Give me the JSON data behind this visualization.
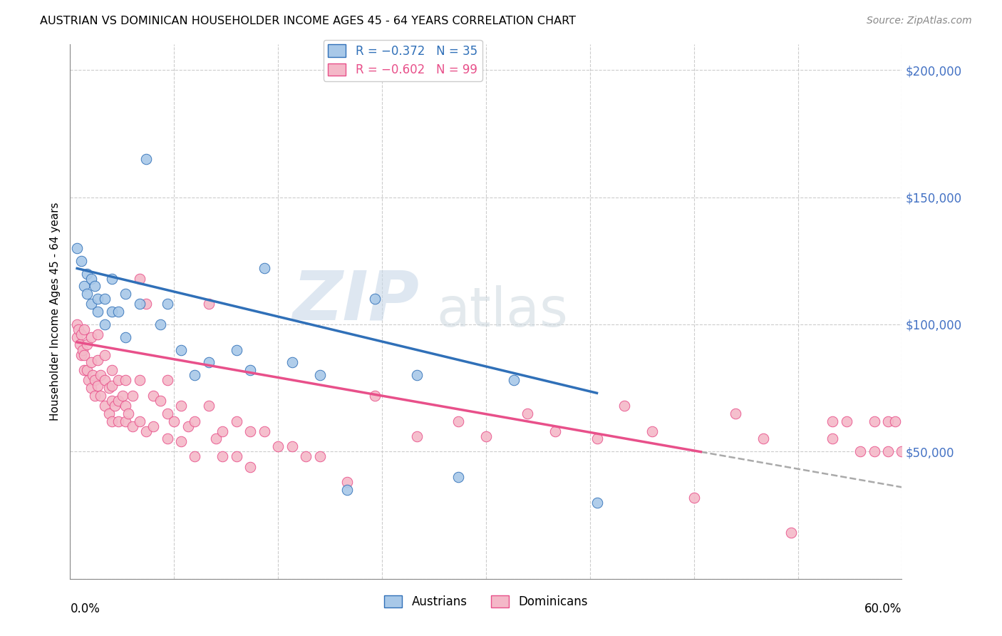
{
  "title": "AUSTRIAN VS DOMINICAN HOUSEHOLDER INCOME AGES 45 - 64 YEARS CORRELATION CHART",
  "source": "Source: ZipAtlas.com",
  "ylabel": "Householder Income Ages 45 - 64 years",
  "xmin": 0.0,
  "xmax": 0.6,
  "ymin": 0,
  "ymax": 210000,
  "yticks": [
    0,
    50000,
    100000,
    150000,
    200000
  ],
  "legend_austrians": "R = −0.372   N = 35",
  "legend_dominicans": "R = −0.602   N = 99",
  "austrians_color": "#a8c8e8",
  "dominicans_color": "#f4b8c8",
  "trendline_austrians_color": "#3070b8",
  "trendline_dominicans_color": "#e8508a",
  "dashed_line_color": "#aaaaaa",
  "watermark_zip": "ZIP",
  "watermark_atlas": "atlas",
  "austrians_x": [
    0.005,
    0.008,
    0.01,
    0.012,
    0.012,
    0.015,
    0.015,
    0.018,
    0.02,
    0.02,
    0.025,
    0.025,
    0.03,
    0.03,
    0.035,
    0.04,
    0.04,
    0.05,
    0.055,
    0.065,
    0.07,
    0.08,
    0.09,
    0.1,
    0.12,
    0.13,
    0.14,
    0.16,
    0.18,
    0.2,
    0.22,
    0.25,
    0.28,
    0.32,
    0.38
  ],
  "austrians_y": [
    130000,
    125000,
    115000,
    120000,
    112000,
    118000,
    108000,
    115000,
    110000,
    105000,
    110000,
    100000,
    118000,
    105000,
    105000,
    112000,
    95000,
    108000,
    165000,
    100000,
    108000,
    90000,
    80000,
    85000,
    90000,
    82000,
    122000,
    85000,
    80000,
    35000,
    110000,
    80000,
    40000,
    78000,
    30000
  ],
  "dominicans_x": [
    0.005,
    0.005,
    0.006,
    0.007,
    0.008,
    0.008,
    0.009,
    0.01,
    0.01,
    0.01,
    0.012,
    0.012,
    0.013,
    0.015,
    0.015,
    0.015,
    0.016,
    0.018,
    0.018,
    0.02,
    0.02,
    0.02,
    0.022,
    0.022,
    0.025,
    0.025,
    0.025,
    0.028,
    0.028,
    0.03,
    0.03,
    0.03,
    0.03,
    0.032,
    0.035,
    0.035,
    0.035,
    0.038,
    0.04,
    0.04,
    0.04,
    0.042,
    0.045,
    0.045,
    0.05,
    0.05,
    0.05,
    0.055,
    0.055,
    0.06,
    0.06,
    0.065,
    0.07,
    0.07,
    0.07,
    0.075,
    0.08,
    0.08,
    0.085,
    0.09,
    0.09,
    0.1,
    0.1,
    0.105,
    0.11,
    0.11,
    0.12,
    0.12,
    0.13,
    0.13,
    0.14,
    0.15,
    0.16,
    0.17,
    0.18,
    0.2,
    0.22,
    0.25,
    0.28,
    0.3,
    0.33,
    0.35,
    0.38,
    0.4,
    0.42,
    0.45,
    0.48,
    0.5,
    0.52,
    0.55,
    0.55,
    0.56,
    0.57,
    0.58,
    0.58,
    0.59,
    0.59,
    0.595,
    0.6
  ],
  "dominicans_y": [
    100000,
    95000,
    98000,
    92000,
    96000,
    88000,
    90000,
    98000,
    88000,
    82000,
    92000,
    82000,
    78000,
    95000,
    85000,
    75000,
    80000,
    78000,
    72000,
    96000,
    86000,
    76000,
    80000,
    72000,
    88000,
    78000,
    68000,
    75000,
    65000,
    82000,
    76000,
    70000,
    62000,
    68000,
    78000,
    70000,
    62000,
    72000,
    78000,
    68000,
    62000,
    65000,
    72000,
    60000,
    118000,
    78000,
    62000,
    108000,
    58000,
    72000,
    60000,
    70000,
    78000,
    65000,
    55000,
    62000,
    68000,
    54000,
    60000,
    62000,
    48000,
    108000,
    68000,
    55000,
    58000,
    48000,
    62000,
    48000,
    58000,
    44000,
    58000,
    52000,
    52000,
    48000,
    48000,
    38000,
    72000,
    56000,
    62000,
    56000,
    65000,
    58000,
    55000,
    68000,
    58000,
    32000,
    65000,
    55000,
    18000,
    62000,
    55000,
    62000,
    50000,
    62000,
    50000,
    62000,
    50000,
    62000,
    50000
  ]
}
